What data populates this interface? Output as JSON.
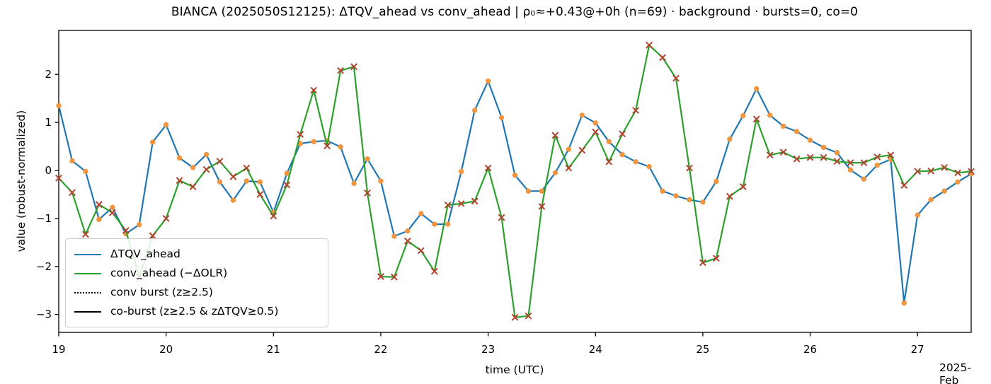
{
  "title": "BIANCA (2025050S12125): ΔTQV_ahead vs conv_ahead | ρ₀≈+0.43@+0h (n=69) · background · bursts=0, co=0",
  "x_axis": {
    "label": "time (UTC)",
    "offset_text": "2025-Feb",
    "tick_days": [
      19,
      20,
      21,
      22,
      23,
      24,
      25,
      26,
      27
    ],
    "tick_labels": [
      "19",
      "20",
      "21",
      "22",
      "23",
      "24",
      "25",
      "26",
      "27"
    ]
  },
  "y_axis": {
    "label": "value (robust-normalized)",
    "tick_values": [
      -3,
      -2,
      -1,
      0,
      1,
      2
    ],
    "tick_labels": [
      "−3",
      "−2",
      "−1",
      "0",
      "1",
      "2"
    ]
  },
  "legend": {
    "items": [
      {
        "label": "ΔTQV_ahead",
        "style": "solid",
        "color": "#1f77b4"
      },
      {
        "label": "conv_ahead (−ΔOLR)",
        "style": "solid",
        "color": "#2ca02c"
      },
      {
        "label": "conv burst (z≥2.5)",
        "style": "dotted",
        "color": "#000000"
      },
      {
        "label": "co-burst (z≥2.5 & zΔTQV≥0.5)",
        "style": "solid",
        "color": "#000000"
      }
    ]
  },
  "chart_data": {
    "type": "line",
    "title": "BIANCA (2025050S12125): ΔTQV_ahead vs conv_ahead | ρ₀≈+0.43@+0h (n=69) · background · bursts=0, co=0",
    "xlabel": "time (UTC)",
    "ylabel": "value (robust-normalized)",
    "x_unit": "day of February 2025 (UTC), samples every 3 h",
    "xlim_days": [
      19.0,
      27.5
    ],
    "ylim": [
      -3.38,
      2.92
    ],
    "grid": false,
    "legend_position": "lower left",
    "n_points": 69,
    "x": [
      19.0,
      19.125,
      19.25,
      19.375,
      19.5,
      19.625,
      19.75,
      19.875,
      20.0,
      20.125,
      20.25,
      20.375,
      20.5,
      20.625,
      20.75,
      20.875,
      21.0,
      21.125,
      21.25,
      21.375,
      21.5,
      21.625,
      21.75,
      21.875,
      22.0,
      22.125,
      22.25,
      22.375,
      22.5,
      22.625,
      22.75,
      22.875,
      23.0,
      23.125,
      23.25,
      23.375,
      23.5,
      23.625,
      23.75,
      23.875,
      24.0,
      24.125,
      24.25,
      24.375,
      24.5,
      24.625,
      24.75,
      24.875,
      25.0,
      25.125,
      25.25,
      25.375,
      25.5,
      25.625,
      25.75,
      25.875,
      26.0,
      26.125,
      26.25,
      26.375,
      26.5,
      26.625,
      26.75,
      26.875,
      27.0,
      27.125,
      27.25,
      27.375,
      27.5
    ],
    "series": [
      {
        "name": "ΔTQV_ahead",
        "color": "#1f77b4",
        "marker": "circle",
        "marker_color": "#f2953f",
        "values": [
          1.35,
          0.2,
          -0.02,
          -1.02,
          -0.77,
          -1.32,
          -1.13,
          0.59,
          0.95,
          0.26,
          0.06,
          0.33,
          -0.24,
          -0.62,
          -0.22,
          -0.24,
          -0.87,
          -0.06,
          0.56,
          0.6,
          0.62,
          0.49,
          -0.27,
          0.24,
          -0.22,
          -1.37,
          -1.26,
          -0.9,
          -1.12,
          -1.12,
          -0.02,
          1.25,
          1.86,
          1.1,
          -0.1,
          -0.43,
          -0.43,
          -0.05,
          0.44,
          1.15,
          0.99,
          0.6,
          0.33,
          0.18,
          0.08,
          -0.43,
          -0.53,
          -0.61,
          -0.66,
          -0.23,
          0.65,
          1.14,
          1.7,
          1.15,
          0.92,
          0.81,
          0.63,
          0.48,
          0.37,
          0.01,
          -0.18,
          0.11,
          0.23,
          -2.76,
          -0.93,
          -0.61,
          -0.43,
          -0.24,
          -0.07
        ]
      },
      {
        "name": "conv_ahead (−ΔOLR)",
        "color": "#2ca02c",
        "marker": "x",
        "marker_color": "#b0442f",
        "values": [
          -0.16,
          -0.46,
          -1.33,
          -0.71,
          -0.88,
          -1.25,
          -2.22,
          -1.36,
          -1.0,
          -0.21,
          -0.34,
          0.02,
          0.19,
          -0.13,
          0.05,
          -0.5,
          -0.95,
          -0.3,
          0.75,
          1.67,
          0.51,
          2.08,
          2.16,
          -0.47,
          -2.21,
          -2.22,
          -1.47,
          -1.67,
          -2.1,
          -0.72,
          -0.69,
          -0.64,
          0.05,
          -0.98,
          -3.06,
          -3.03,
          -0.75,
          0.73,
          0.05,
          0.42,
          0.8,
          0.18,
          0.76,
          1.25,
          2.61,
          2.35,
          1.92,
          0.05,
          -1.92,
          -1.83,
          -0.54,
          -0.34,
          1.07,
          0.32,
          0.38,
          0.24,
          0.27,
          0.27,
          0.19,
          0.16,
          0.16,
          0.28,
          0.32,
          -0.31,
          -0.02,
          -0.01,
          0.06,
          -0.05,
          -0.02
        ]
      }
    ],
    "burst_markers": {
      "conv_bursts": 0,
      "co_bursts": 0
    }
  }
}
